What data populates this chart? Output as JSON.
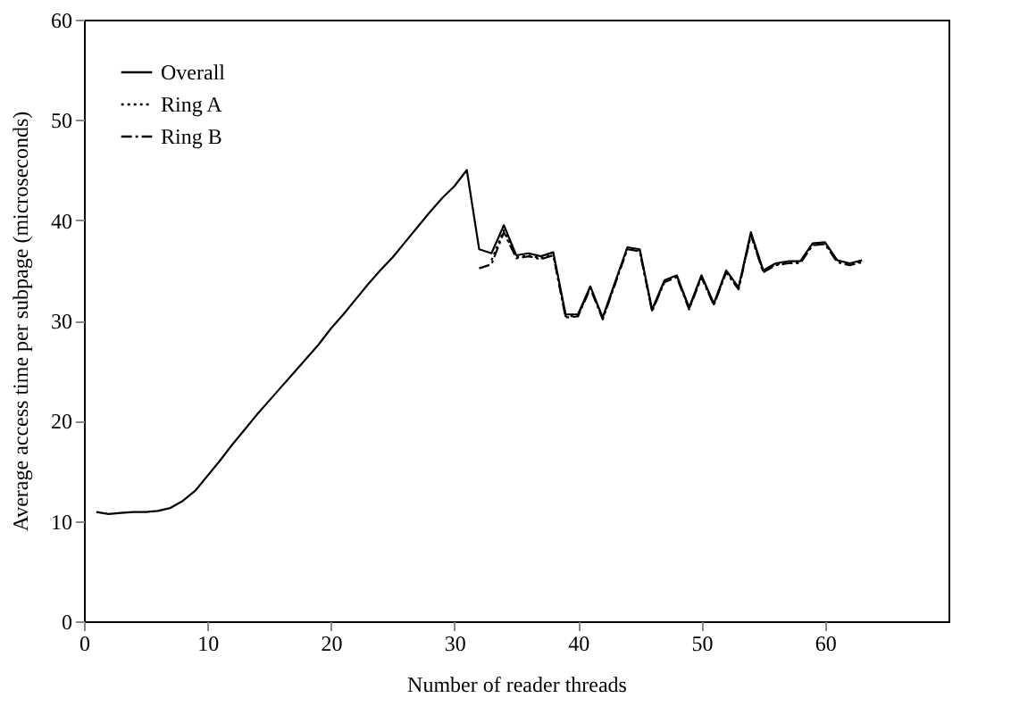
{
  "chart_data": {
    "type": "line",
    "xlabel": "Number of reader threads",
    "ylabel": "Average access time per subpage (microseconds)",
    "xlim": [
      0,
      70
    ],
    "xticks": [
      0,
      10,
      20,
      30,
      40,
      50,
      60
    ],
    "ylim": [
      0,
      60
    ],
    "yticks": [
      0,
      10,
      20,
      30,
      40,
      50,
      60
    ],
    "grid": false,
    "legend": "top left",
    "marker": "none",
    "series": [
      {
        "name": "Overall",
        "color": "#000000",
        "line_style": "solid",
        "x": [
          1,
          2,
          3,
          4,
          5,
          6,
          7,
          8,
          9,
          10,
          11,
          12,
          13,
          14,
          15,
          16,
          17,
          18,
          19,
          20,
          21,
          22,
          23,
          24,
          25,
          26,
          27,
          28,
          29,
          30,
          31,
          32,
          33,
          34,
          35,
          36,
          37,
          38,
          39,
          40,
          41,
          42,
          43,
          44,
          45,
          46,
          47,
          48,
          49,
          50,
          51,
          52,
          53,
          54,
          55,
          56,
          57,
          58,
          59,
          60,
          61,
          62,
          63
        ],
        "values": [
          10.9,
          10.7,
          10.8,
          10.9,
          10.9,
          11.0,
          11.3,
          12.0,
          13.0,
          14.5,
          16.0,
          17.6,
          19.1,
          20.6,
          22.0,
          23.4,
          24.8,
          26.2,
          27.6,
          29.2,
          30.6,
          32.1,
          33.6,
          35.0,
          36.3,
          37.8,
          39.3,
          40.8,
          42.2,
          43.4,
          45.0,
          37.1,
          36.7,
          39.5,
          36.5,
          36.7,
          36.4,
          36.8,
          30.6,
          30.6,
          33.4,
          30.3,
          33.8,
          37.3,
          37.1,
          31.1,
          34.0,
          34.5,
          31.3,
          34.5,
          31.7,
          35.0,
          33.3,
          38.8,
          35.0,
          35.7,
          35.9,
          35.9,
          37.7,
          37.8,
          36.0,
          35.7,
          36.0
        ]
      },
      {
        "name": "Ring A",
        "color": "#000000",
        "line_style": "dotted",
        "x": [
          33,
          34,
          35,
          36,
          37,
          38,
          39,
          40,
          41,
          42,
          43,
          44,
          45,
          46,
          47,
          48,
          49,
          50,
          51,
          52,
          53,
          54,
          55,
          56,
          57,
          58,
          59,
          60,
          61,
          62,
          63
        ],
        "values": [
          36.0,
          39.0,
          36.3,
          36.5,
          36.2,
          36.6,
          30.4,
          30.5,
          33.3,
          30.2,
          33.7,
          37.2,
          37.0,
          31.0,
          33.9,
          34.4,
          31.2,
          34.4,
          31.6,
          34.9,
          33.2,
          38.6,
          34.9,
          35.6,
          35.8,
          35.8,
          37.6,
          37.7,
          35.9,
          35.6,
          35.9
        ]
      },
      {
        "name": "Ring B",
        "color": "#000000",
        "line_style": "dashdot",
        "x": [
          32,
          33,
          34,
          35,
          36,
          37,
          38,
          39,
          40,
          41,
          42,
          43,
          44,
          45,
          46,
          47,
          48,
          49,
          50,
          51,
          52,
          53,
          54,
          55,
          56,
          57,
          58,
          59,
          60,
          61,
          62,
          63
        ],
        "values": [
          35.2,
          35.6,
          38.8,
          36.2,
          36.4,
          36.1,
          36.5,
          30.3,
          30.4,
          33.2,
          30.1,
          33.6,
          37.1,
          36.9,
          30.9,
          33.8,
          34.3,
          31.1,
          34.3,
          31.5,
          34.8,
          33.1,
          38.5,
          34.8,
          35.5,
          35.7,
          35.7,
          37.5,
          37.6,
          35.8,
          35.5,
          35.8
        ]
      }
    ]
  }
}
